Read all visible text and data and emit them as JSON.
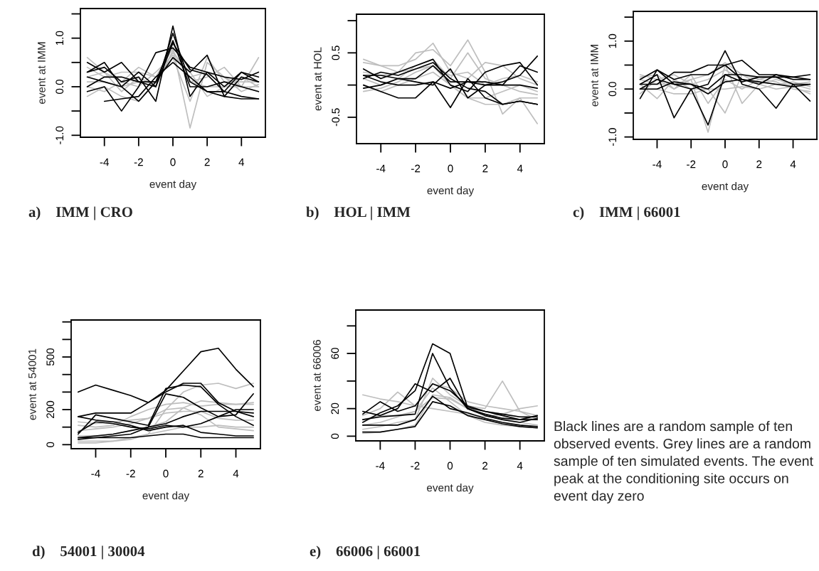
{
  "chart_data": [
    {
      "type": "line",
      "title": "a)    IMM | CRO",
      "xlabel": "event day",
      "ylabel": "event at IMM",
      "x": [
        -5,
        -4,
        -3,
        -2,
        -1,
        0,
        1,
        2,
        3,
        4,
        5
      ],
      "xlim": [
        -5.4,
        5.4
      ],
      "xticks": [
        -4,
        -2,
        0,
        2,
        4
      ],
      "ylim": [
        -1.04,
        1.61
      ],
      "yticks": [
        {
          "value": -1.0,
          "label": "-1.0"
        },
        {
          "value": -0.5,
          "label": null
        },
        {
          "value": 0.0,
          "label": "0.0"
        },
        {
          "value": 0.5,
          "label": null
        },
        {
          "value": 1.0,
          "label": "1.0"
        },
        {
          "value": 1.5,
          "label": null
        }
      ],
      "series": [
        {
          "color": "#bebebe",
          "values": [
            0.6,
            0.3,
            0.1,
            0.4,
            0.2,
            0.8,
            -0.85,
            0.5,
            0.2,
            0.0,
            0.6
          ]
        },
        {
          "color": "#bebebe",
          "values": [
            -0.2,
            0.0,
            -0.2,
            -0.3,
            0.1,
            0.7,
            0.3,
            -0.2,
            0.0,
            0.0,
            0.0
          ]
        },
        {
          "color": "#bebebe",
          "values": [
            0.4,
            0.2,
            0.3,
            0.3,
            0.2,
            0.6,
            -0.3,
            0.6,
            0.1,
            0.1,
            0.1
          ]
        },
        {
          "color": "#bebebe",
          "values": [
            0.1,
            0.1,
            0.0,
            0.1,
            0.1,
            0.9,
            0.1,
            0.2,
            0.4,
            0.0,
            -0.1
          ]
        },
        {
          "color": "#bebebe",
          "values": [
            0.2,
            0.3,
            -0.1,
            0.2,
            0.0,
            0.75,
            0.1,
            0.0,
            0.0,
            0.2,
            0.0
          ]
        },
        {
          "color": "#bebebe",
          "values": [
            0.0,
            -0.1,
            0.1,
            0.0,
            0.3,
            0.65,
            0.2,
            0.3,
            0.2,
            -0.1,
            0.05
          ]
        },
        {
          "color": "#000000",
          "values": [
            0.3,
            0.4,
            0.1,
            0.2,
            -0.3,
            1.25,
            -0.2,
            0.3,
            0.2,
            0.15,
            0.3
          ]
        },
        {
          "color": "#000000",
          "values": [
            0.5,
            0.3,
            0.5,
            0.1,
            0.0,
            1.1,
            0.1,
            -0.1,
            -0.1,
            -0.2,
            -0.25
          ]
        },
        {
          "color": "#000000",
          "values": [
            -0.1,
            0.0,
            -0.5,
            0.0,
            0.7,
            0.8,
            0.4,
            0.3,
            0.0,
            0.3,
            0.1
          ]
        },
        {
          "color": "#000000",
          "values": [
            0.3,
            0.5,
            0.0,
            -0.3,
            0.1,
            0.6,
            0.3,
            0.65,
            -0.2,
            0.2,
            0.1
          ]
        },
        {
          "color": "#000000",
          "values": [
            null,
            -0.3,
            -0.25,
            -0.2,
            0.2,
            0.5,
            0.2,
            -0.1,
            -0.2,
            -0.25,
            -0.25
          ]
        },
        {
          "color": "#000000",
          "values": [
            0.0,
            0.2,
            0.2,
            0.1,
            0.1,
            0.95,
            0.0,
            0.0,
            0.1,
            0.0,
            -0.1
          ]
        },
        {
          "color": "#000000",
          "values": [
            0.2,
            0.1,
            0.0,
            0.3,
            0.0,
            0.9,
            0.35,
            0.25,
            -0.1,
            0.3,
            0.2
          ]
        }
      ]
    },
    {
      "type": "line",
      "title": "b)    HOL | IMM",
      "xlabel": "event day",
      "ylabel": "event at HOL",
      "x": [
        -5,
        -4,
        -3,
        -2,
        -1,
        0,
        1,
        2,
        3,
        4,
        5
      ],
      "xlim": [
        -5.4,
        5.4
      ],
      "xticks": [
        -4,
        -2,
        0,
        2,
        4
      ],
      "ylim": [
        -0.91,
        1.1
      ],
      "yticks": [
        {
          "value": -0.5,
          "label": "-0.5"
        },
        {
          "value": 0.0,
          "label": null
        },
        {
          "value": 0.5,
          "label": "0.5"
        },
        {
          "value": 1.0,
          "label": null
        }
      ],
      "series": [
        {
          "color": "#bebebe",
          "values": [
            0.4,
            0.3,
            0.2,
            0.5,
            0.55,
            0.3,
            0.7,
            0.2,
            -0.45,
            -0.2,
            -0.6
          ]
        },
        {
          "color": "#bebebe",
          "values": [
            0.35,
            0.3,
            0.3,
            0.4,
            0.65,
            0.2,
            0.1,
            0.35,
            0.3,
            0.1,
            0.0
          ]
        },
        {
          "color": "#bebebe",
          "values": [
            0.0,
            -0.1,
            0.0,
            0.1,
            0.2,
            0.0,
            -0.2,
            -0.3,
            -0.3,
            -0.2,
            -0.2
          ]
        },
        {
          "color": "#bebebe",
          "values": [
            0.1,
            0.0,
            0.1,
            0.3,
            0.4,
            0.1,
            0.5,
            0.1,
            0.0,
            -0.1,
            -0.15
          ]
        },
        {
          "color": "#bebebe",
          "values": [
            -0.1,
            -0.05,
            0.05,
            0.2,
            0.3,
            0.0,
            -0.2,
            -0.2,
            -0.1,
            0.0,
            -0.1
          ]
        },
        {
          "color": "#bebebe",
          "values": [
            0.2,
            0.15,
            0.2,
            0.25,
            0.3,
            0.15,
            0.2,
            0.0,
            0.1,
            0.15,
            0.05
          ]
        },
        {
          "color": "#000000",
          "values": [
            0.15,
            0.15,
            0.1,
            0.1,
            0.3,
            0.05,
            0.05,
            0.0,
            0.0,
            0.0,
            -0.05
          ]
        },
        {
          "color": "#000000",
          "values": [
            0.0,
            -0.1,
            -0.2,
            -0.2,
            0.05,
            -0.35,
            0.1,
            -0.2,
            -0.3,
            -0.25,
            -0.3
          ]
        },
        {
          "color": "#000000",
          "values": [
            0.25,
            0.1,
            0.2,
            0.3,
            0.4,
            0.0,
            -0.1,
            0.2,
            0.3,
            0.35,
            0.0
          ]
        },
        {
          "color": "#000000",
          "values": [
            -0.05,
            0.0,
            0.1,
            0.05,
            0.0,
            0.25,
            -0.2,
            0.0,
            0.05,
            0.15,
            0.45
          ]
        },
        {
          "color": "#000000",
          "values": [
            0.1,
            0.2,
            0.15,
            0.25,
            0.35,
            0.1,
            -0.05,
            -0.1,
            -0.3,
            -0.25,
            -0.3
          ]
        },
        {
          "color": "#000000",
          "values": [
            0.15,
            0.05,
            0.0,
            0.0,
            0.05,
            -0.05,
            0.05,
            0.05,
            0.0,
            0.3,
            0.2
          ]
        }
      ]
    },
    {
      "type": "line",
      "title": "c)    IMM | 66001",
      "xlabel": "event day",
      "ylabel": "event at IMM",
      "x": [
        -5,
        -4,
        -3,
        -2,
        -1,
        0,
        1,
        2,
        3,
        4,
        5
      ],
      "xlim": [
        -5.4,
        5.4
      ],
      "xticks": [
        -4,
        -2,
        0,
        2,
        4
      ],
      "ylim": [
        -1.05,
        1.62
      ],
      "yticks": [
        {
          "value": -1.0,
          "label": "-1.0"
        },
        {
          "value": -0.5,
          "label": null
        },
        {
          "value": 0.0,
          "label": "0.0"
        },
        {
          "value": 0.5,
          "label": null
        },
        {
          "value": 1.0,
          "label": "1.0"
        },
        {
          "value": 1.5,
          "label": null
        }
      ],
      "series": [
        {
          "color": "#bebebe",
          "values": [
            0.3,
            0.2,
            0.0,
            0.2,
            -0.9,
            0.5,
            -0.3,
            0.1,
            0.2,
            0.1,
            0.0
          ]
        },
        {
          "color": "#bebebe",
          "values": [
            0.1,
            -0.2,
            0.2,
            0.0,
            0.0,
            -0.5,
            0.3,
            0.1,
            0.0,
            0.05,
            -0.1
          ]
        },
        {
          "color": "#bebebe",
          "values": [
            0.2,
            0.1,
            0.1,
            0.2,
            0.3,
            0.55,
            0.3,
            0.2,
            0.3,
            0.2,
            0.2
          ]
        },
        {
          "color": "#bebebe",
          "values": [
            0.0,
            0.0,
            -0.1,
            -0.1,
            0.0,
            0.0,
            0.05,
            0.0,
            0.1,
            0.15,
            0.05
          ]
        },
        {
          "color": "#bebebe",
          "values": [
            -0.1,
            0.2,
            0.3,
            0.1,
            0.2,
            0.4,
            0.2,
            0.15,
            0.1,
            0.1,
            0.15
          ]
        },
        {
          "color": "#bebebe",
          "values": [
            0.25,
            0.3,
            0.0,
            0.3,
            -0.3,
            0.2,
            0.0,
            0.2,
            0.15,
            0.0,
            -0.05
          ]
        },
        {
          "color": "#000000",
          "values": [
            -0.2,
            0.4,
            0.2,
            0.3,
            0.3,
            0.5,
            0.6,
            0.3,
            0.3,
            0.2,
            0.2
          ]
        },
        {
          "color": "#000000",
          "values": [
            0.1,
            0.3,
            -0.6,
            0.0,
            0.1,
            0.8,
            0.1,
            0.0,
            -0.4,
            0.1,
            -0.25
          ]
        },
        {
          "color": "#000000",
          "values": [
            0.0,
            0.2,
            0.1,
            0.0,
            -0.75,
            0.3,
            0.3,
            0.25,
            0.25,
            0.25,
            0.2
          ]
        },
        {
          "color": "#000000",
          "values": [
            0.1,
            0.1,
            0.35,
            0.35,
            0.5,
            0.5,
            0.2,
            0.1,
            0.3,
            0.25,
            0.3
          ]
        },
        {
          "color": "#000000",
          "values": [
            0.0,
            0.0,
            0.15,
            0.1,
            -0.1,
            0.15,
            0.2,
            0.15,
            0.1,
            0.05,
            0.1
          ]
        },
        {
          "color": "#000000",
          "values": [
            0.2,
            0.4,
            0.1,
            0.1,
            0.0,
            0.3,
            0.15,
            0.25,
            0.25,
            0.1,
            0.1
          ]
        }
      ]
    },
    {
      "type": "line",
      "title": "d)    54001 | 30004",
      "xlabel": "event day",
      "ylabel": "event at 54001",
      "x": [
        -5,
        -4,
        -3,
        -2,
        -1,
        0,
        1,
        2,
        3,
        4,
        5
      ],
      "xlim": [
        -5.4,
        5.4
      ],
      "xticks": [
        -4,
        -2,
        0,
        2,
        4
      ],
      "ylim": [
        -23,
        711
      ],
      "yticks": [
        0,
        {
          "value": 100,
          "label": null
        },
        200,
        {
          "value": 300,
          "label": null
        },
        {
          "value": 400,
          "label": null
        },
        500,
        {
          "value": 600,
          "label": null
        },
        {
          "value": 700,
          "label": null
        }
      ],
      "series": [
        {
          "color": "#bebebe",
          "values": [
            20,
            20,
            20,
            40,
            60,
            200,
            300,
            340,
            350,
            320,
            350
          ]
        },
        {
          "color": "#bebebe",
          "values": [
            110,
            100,
            110,
            160,
            200,
            230,
            240,
            220,
            230,
            230,
            230
          ]
        },
        {
          "color": "#bebebe",
          "values": [
            130,
            120,
            130,
            140,
            150,
            180,
            190,
            190,
            150,
            140,
            140
          ]
        },
        {
          "color": "#bebebe",
          "values": [
            50,
            50,
            60,
            80,
            100,
            130,
            210,
            250,
            240,
            230,
            240
          ]
        },
        {
          "color": "#bebebe",
          "values": [
            10,
            10,
            20,
            30,
            60,
            80,
            100,
            100,
            110,
            100,
            100
          ]
        },
        {
          "color": "#bebebe",
          "values": [
            80,
            90,
            100,
            120,
            150,
            200,
            210,
            170,
            100,
            90,
            80
          ]
        },
        {
          "color": "#000000",
          "values": [
            300,
            340,
            310,
            280,
            240,
            310,
            420,
            530,
            550,
            430,
            330
          ]
        },
        {
          "color": "#000000",
          "values": [
            160,
            180,
            180,
            180,
            240,
            300,
            350,
            350,
            240,
            190,
            160
          ]
        },
        {
          "color": "#000000",
          "values": [
            60,
            170,
            150,
            130,
            110,
            320,
            340,
            330,
            230,
            160,
            110
          ]
        },
        {
          "color": "#000000",
          "values": [
            40,
            40,
            50,
            60,
            100,
            290,
            270,
            210,
            160,
            200,
            200
          ]
        },
        {
          "color": "#000000",
          "values": [
            30,
            40,
            40,
            40,
            50,
            60,
            60,
            40,
            40,
            40,
            40
          ]
        },
        {
          "color": "#000000",
          "values": [
            160,
            140,
            130,
            110,
            80,
            100,
            110,
            70,
            60,
            50,
            50
          ]
        },
        {
          "color": "#000000",
          "values": [
            40,
            50,
            60,
            80,
            100,
            120,
            160,
            190,
            190,
            190,
            180
          ]
        },
        {
          "color": "#000000",
          "values": [
            70,
            130,
            120,
            100,
            90,
            110,
            100,
            120,
            160,
            170,
            290
          ]
        }
      ]
    },
    {
      "type": "line",
      "title": "e)    66006 | 66001",
      "xlabel": "event day",
      "ylabel": "event at 66006",
      "x": [
        -5,
        -4,
        -3,
        -2,
        -1,
        0,
        1,
        2,
        3,
        4,
        5
      ],
      "xlim": [
        -5.4,
        5.4
      ],
      "xticks": [
        -4,
        -2,
        0,
        2,
        4
      ],
      "ylim": [
        -3.4,
        91.5
      ],
      "yticks": [
        0,
        20,
        {
          "value": 40,
          "label": null
        },
        60,
        {
          "value": 80,
          "label": null
        }
      ],
      "series": [
        {
          "color": "#bebebe",
          "values": [
            30,
            27,
            25,
            22,
            20,
            18,
            16,
            14,
            16,
            20,
            22
          ]
        },
        {
          "color": "#bebebe",
          "values": [
            5,
            7,
            10,
            12,
            42,
            30,
            22,
            20,
            40,
            18,
            12
          ]
        },
        {
          "color": "#bebebe",
          "values": [
            15,
            20,
            32,
            22,
            38,
            35,
            25,
            22,
            20,
            18,
            15
          ]
        },
        {
          "color": "#bebebe",
          "values": [
            2,
            3,
            5,
            8,
            30,
            28,
            20,
            15,
            12,
            10,
            8
          ]
        },
        {
          "color": "#bebebe",
          "values": [
            8,
            10,
            14,
            18,
            35,
            25,
            15,
            10,
            8,
            7,
            6
          ]
        },
        {
          "color": "#bebebe",
          "values": [
            12,
            15,
            15,
            18,
            28,
            27,
            20,
            18,
            16,
            14,
            12
          ]
        },
        {
          "color": "#000000",
          "values": [
            10,
            17,
            22,
            33,
            67,
            60,
            21,
            18,
            15,
            12,
            12
          ]
        },
        {
          "color": "#000000",
          "values": [
            12,
            14,
            15,
            16,
            60,
            35,
            20,
            15,
            12,
            10,
            13
          ]
        },
        {
          "color": "#000000",
          "values": [
            18,
            15,
            20,
            38,
            32,
            42,
            20,
            16,
            13,
            12,
            15
          ]
        },
        {
          "color": "#000000",
          "values": [
            8,
            8,
            8,
            12,
            29,
            20,
            17,
            13,
            10,
            8,
            7
          ]
        },
        {
          "color": "#000000",
          "values": [
            3,
            3,
            5,
            7,
            25,
            22,
            15,
            12,
            9,
            7,
            6
          ]
        },
        {
          "color": "#000000",
          "values": [
            16,
            25,
            18,
            22,
            38,
            33,
            22,
            18,
            16,
            14,
            14
          ]
        }
      ]
    },
    {
      "type": "other",
      "annotations": [
        "Black lines are a random sample of ten observed events. Grey lines are a random sample of ten simulated events. The event peak at the conditioning site occurs on event day zero"
      ]
    }
  ]
}
